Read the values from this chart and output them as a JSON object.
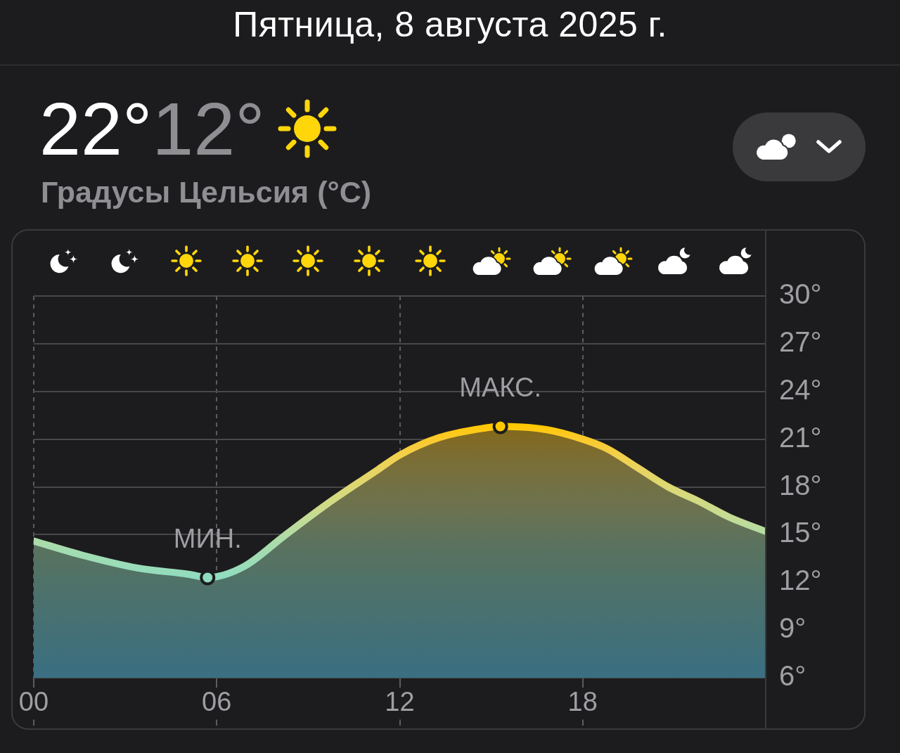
{
  "chart_data": {
    "type": "area",
    "title": "Пятница, 8 августа 2025 г.",
    "subtitle": "Градусы Цельсия (°C)",
    "annotations": [
      "22°",
      "12°",
      {
        "text": "МИН.",
        "x": 5.7,
        "y": 12.3
      },
      {
        "text": "МАКС.",
        "x": 15.3,
        "y": 21.8
      }
    ],
    "x": [
      0,
      1.6,
      3.4,
      5.1,
      5.7,
      6.9,
      8.2,
      9.6,
      11.3,
      12,
      13.3,
      14.8,
      15.3,
      16.8,
      18,
      18.8,
      19.8,
      20.8,
      21.8,
      22.8,
      24
    ],
    "series": [
      {
        "values": [
          14.6,
          13.7,
          12.9,
          12.5,
          12.3,
          13.0,
          14.9,
          16.9,
          19.1,
          20.0,
          21.1,
          21.7,
          21.8,
          21.6,
          21.0,
          20.4,
          19.2,
          18.0,
          17.1,
          16.1,
          15.2
        ],
        "colors": [
          "#abdcaa",
          "#a0dcb2",
          "#98dcba",
          "#93dcbe",
          "#90dcc0",
          "#99dcb9",
          "#b0dca6",
          "#d0da86",
          "#e8d460",
          "#f2d04a",
          "#fcca28",
          "#ffc80c",
          "#ffc800",
          "#ffc812",
          "#fbca2c",
          "#f6cd40",
          "#e9d45e",
          "#dcd874",
          "#d2da84",
          "#c4dc94",
          "#b6dca2"
        ]
      },
      {
        "type": "scatter",
        "x": [
          5.7,
          15.3
        ],
        "values": [
          12.3,
          21.8
        ],
        "colors": [
          "#90dcc0",
          "#ffc800"
        ],
        "marker": "circle"
      }
    ],
    "xlim": [
      0,
      24
    ],
    "xticks": [
      {
        "value": 0,
        "label": "00"
      },
      {
        "value": 6,
        "label": "06"
      },
      12,
      18
    ],
    "ylim": [
      6,
      30
    ],
    "yticks": [
      {
        "value": 6,
        "label": "6°"
      },
      {
        "value": 9,
        "label": "9°"
      },
      {
        "value": 12,
        "label": "12°"
      },
      {
        "value": 15,
        "label": "15°"
      },
      {
        "value": 18,
        "label": "18°"
      },
      {
        "value": 21,
        "label": "21°"
      },
      {
        "value": 24,
        "label": "24°"
      },
      {
        "value": 27,
        "label": "27°"
      },
      {
        "value": 30,
        "label": "30°"
      }
    ],
    "grid": true,
    "marker": "none",
    "line_style": "solid"
  }
}
